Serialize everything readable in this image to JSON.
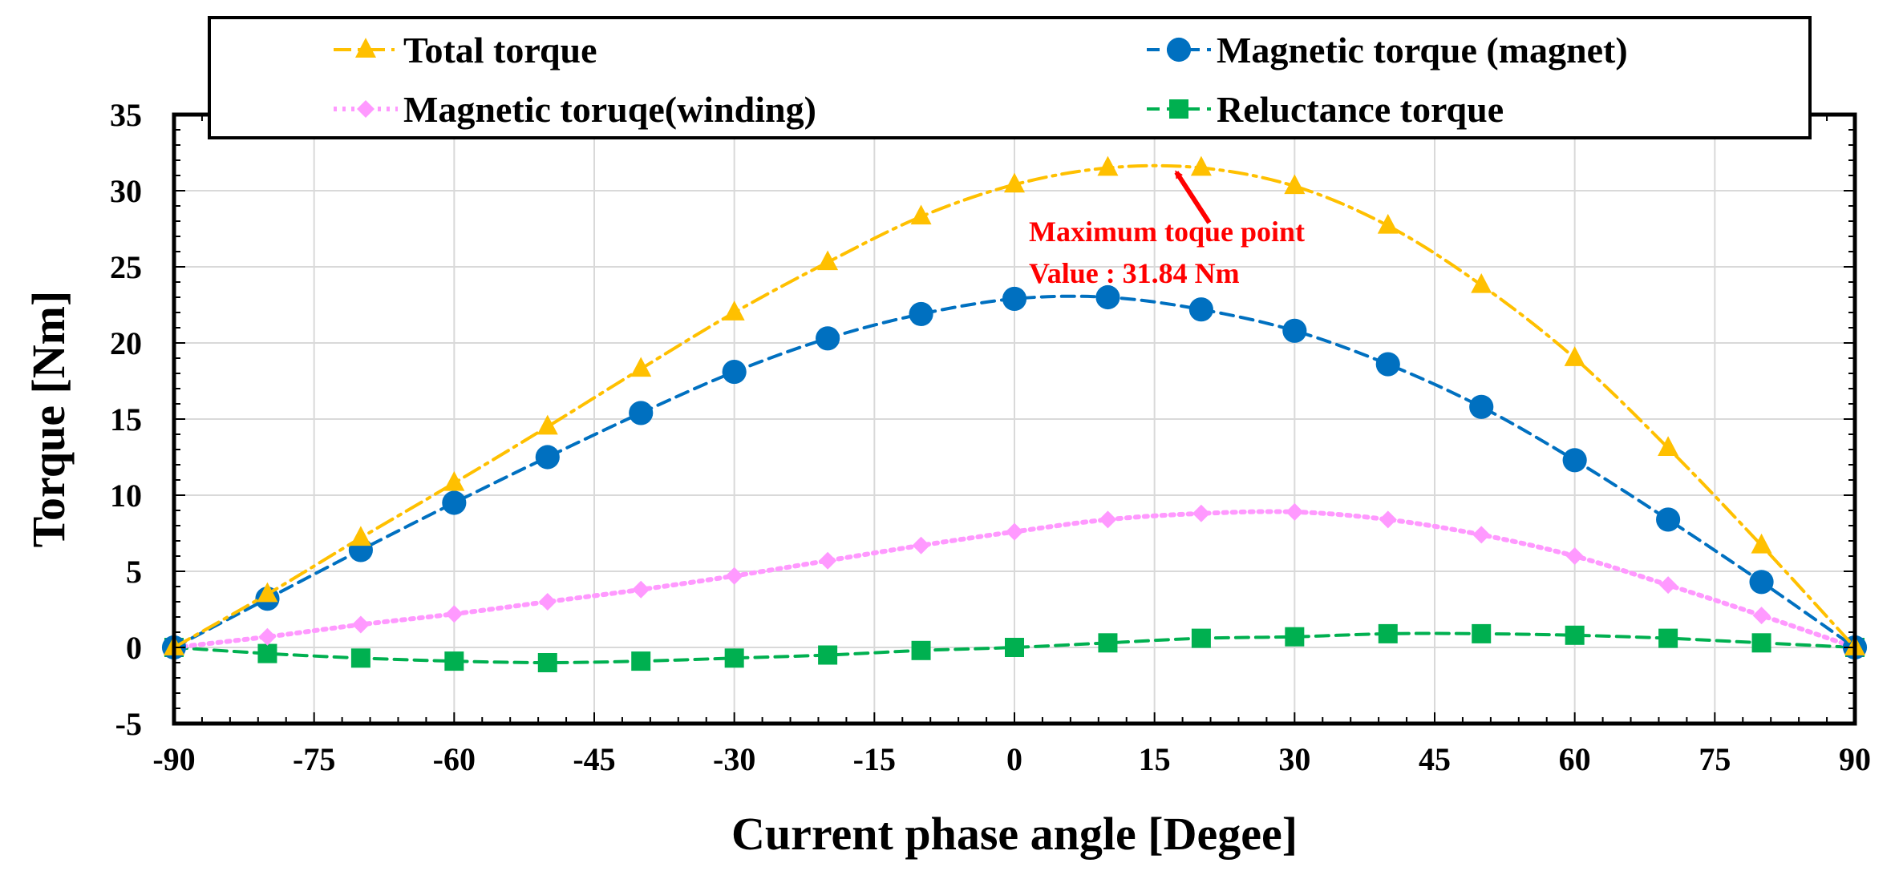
{
  "chart_data": {
    "type": "line",
    "xlabel": "Current phase angle [Degee]",
    "ylabel": "Torque [Nm]",
    "xlim": [
      -90,
      90
    ],
    "ylim": [
      -5,
      35
    ],
    "xticks": [
      -90,
      -75,
      -60,
      -45,
      -30,
      -15,
      0,
      15,
      30,
      45,
      60,
      75,
      90
    ],
    "yticks": [
      -5,
      0,
      5,
      10,
      15,
      20,
      25,
      30,
      35
    ],
    "grid": true,
    "legend_position": "top",
    "series": [
      {
        "name": "Total torque",
        "color": "#ffc000",
        "marker": "triangle",
        "line_style": "dash-dot",
        "x": [
          -90,
          -80,
          -70,
          -60,
          -50,
          -40,
          -30,
          -20,
          -10,
          0,
          10,
          20,
          30,
          40,
          50,
          60,
          70,
          80,
          90
        ],
        "values": [
          0,
          3.5,
          7.2,
          10.8,
          14.5,
          18.3,
          22.0,
          25.3,
          28.3,
          30.4,
          31.5,
          31.5,
          30.3,
          27.7,
          23.8,
          19.0,
          13.1,
          6.7,
          0
        ]
      },
      {
        "name": "Magnetic torque (magnet)",
        "color": "#0070c0",
        "marker": "circle",
        "line_style": "dashed",
        "x": [
          -90,
          -80,
          -70,
          -60,
          -50,
          -40,
          -30,
          -20,
          -10,
          0,
          10,
          20,
          30,
          40,
          50,
          60,
          70,
          80,
          90
        ],
        "values": [
          0,
          3.2,
          6.4,
          9.5,
          12.5,
          15.4,
          18.1,
          20.3,
          21.9,
          22.9,
          23.0,
          22.2,
          20.8,
          18.6,
          15.8,
          12.3,
          8.4,
          4.3,
          0
        ]
      },
      {
        "name": "Magnetic toruqe(winding)",
        "color": "#ff99ff",
        "marker": "diamond",
        "line_style": "dotted",
        "x": [
          -90,
          -80,
          -70,
          -60,
          -50,
          -40,
          -30,
          -20,
          -10,
          0,
          10,
          20,
          30,
          40,
          50,
          60,
          70,
          80,
          90
        ],
        "values": [
          0,
          0.7,
          1.5,
          2.2,
          3.0,
          3.8,
          4.7,
          5.7,
          6.7,
          7.6,
          8.4,
          8.8,
          8.9,
          8.4,
          7.4,
          6.0,
          4.1,
          2.1,
          0
        ]
      },
      {
        "name": "Reluctance torque",
        "color": "#00b050",
        "marker": "square",
        "line_style": "dashed",
        "x": [
          -90,
          -80,
          -70,
          -60,
          -50,
          -40,
          -30,
          -20,
          -10,
          0,
          10,
          20,
          30,
          40,
          50,
          60,
          70,
          80,
          90
        ],
        "values": [
          0,
          -0.4,
          -0.7,
          -0.9,
          -1.0,
          -0.9,
          -0.7,
          -0.5,
          -0.2,
          0.0,
          0.3,
          0.6,
          0.7,
          0.9,
          0.9,
          0.8,
          0.6,
          0.3,
          0
        ]
      }
    ],
    "annotation": {
      "line1": "Maximum toque point",
      "line2": "Value : 31.84 Nm",
      "color": "#ff0000",
      "point": {
        "x": 17,
        "y": 31.84
      }
    }
  }
}
